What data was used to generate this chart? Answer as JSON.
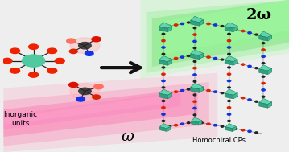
{
  "bg_color": "#eeeeee",
  "label_inorganic": "Inorganic\nunits",
  "label_homochiral": "Homochiral CPs",
  "label_omega": "ω",
  "label_2omega": "2ω",
  "metal_color": "#50c8a0",
  "oxygen_color": "#ee2200",
  "pink_beam": "#ff60a0",
  "green_beam": "#44dd44",
  "arrow_color": "#111111"
}
